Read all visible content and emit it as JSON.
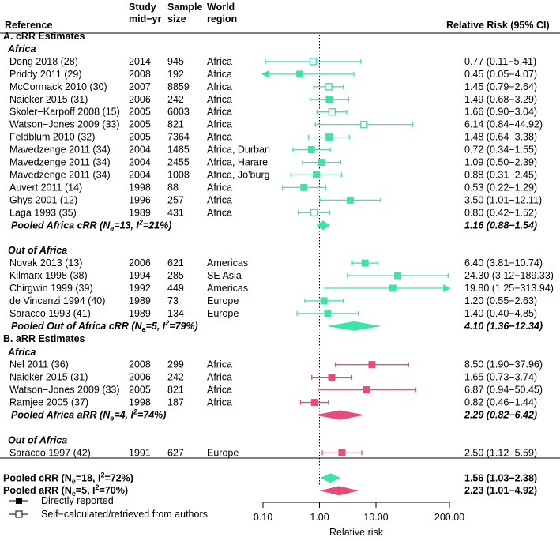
{
  "chart_data": {
    "type": "forest",
    "headers": {
      "reference": "Reference",
      "year_1": "Study",
      "year_2": "mid−yr",
      "size_1": "Sample",
      "size_2": "size",
      "region_1": "World",
      "region_2": "region",
      "rr": "Relative Risk (95% CI)"
    },
    "colors": {
      "crr": "#3ee3a8",
      "arr": "#ea4a76",
      "ref_line": "#000000"
    },
    "rows": [
      {
        "kind": "section",
        "label": "A. cRR Estimates"
      },
      {
        "kind": "subgroup",
        "label": "Africa"
      },
      {
        "kind": "study",
        "group": "crr",
        "ref": "Dong 2018 (28)",
        "year": "2014",
        "n": "945",
        "region": "Africa",
        "rr": 0.77,
        "lo": 0.11,
        "hi": 5.41,
        "marker": "open",
        "label": "0.77 (0.11−5.41)"
      },
      {
        "kind": "study",
        "group": "crr",
        "ref": "Priddy 2011 (29)",
        "year": "2008",
        "n": "192",
        "region": "Africa",
        "rr": 0.45,
        "lo": 0.05,
        "hi": 4.07,
        "marker": "filled",
        "label": "0.45 (0.05−4.07)"
      },
      {
        "kind": "study",
        "group": "crr",
        "ref": "McCormack 2010 (30)",
        "year": "2007",
        "n": "8859",
        "region": "Africa",
        "rr": 1.45,
        "lo": 0.79,
        "hi": 2.64,
        "marker": "open",
        "label": "1.45 (0.79−2.64)"
      },
      {
        "kind": "study",
        "group": "crr",
        "ref": "Naicker 2015 (31)",
        "year": "2006",
        "n": "242",
        "region": "Africa",
        "rr": 1.49,
        "lo": 0.68,
        "hi": 3.29,
        "marker": "filled",
        "label": "1.49 (0.68−3.29)"
      },
      {
        "kind": "study",
        "group": "crr",
        "ref": "Skoler−Karpoff 2008 (15)",
        "year": "2005",
        "n": "6003",
        "region": "Africa",
        "rr": 1.66,
        "lo": 0.9,
        "hi": 3.04,
        "marker": "open",
        "label": "1.66 (0.90−3.04)"
      },
      {
        "kind": "study",
        "group": "crr",
        "ref": "Watson−Jones 2009 (33)",
        "year": "2005",
        "n": "821",
        "region": "Africa",
        "rr": 6.14,
        "lo": 0.84,
        "hi": 44.92,
        "marker": "open",
        "label": "6.14 (0.84−44.92)"
      },
      {
        "kind": "study",
        "group": "crr",
        "ref": "Feldblum 2010 (32)",
        "year": "2005",
        "n": "7364",
        "region": "Africa",
        "rr": 1.48,
        "lo": 0.64,
        "hi": 3.38,
        "marker": "filled",
        "label": "1.48 (0.64−3.38)"
      },
      {
        "kind": "study",
        "group": "crr",
        "ref": "Mavedzenge 2011 (34)",
        "year": "2004",
        "n": "1485",
        "region": "Africa, Durban",
        "rr": 0.72,
        "lo": 0.34,
        "hi": 1.55,
        "marker": "filled",
        "label": "0.72 (0.34−1.55)"
      },
      {
        "kind": "study",
        "group": "crr",
        "ref": "Mavedzenge 2011 (34)",
        "year": "2004",
        "n": "2455",
        "region": "Africa, Harare",
        "rr": 1.09,
        "lo": 0.5,
        "hi": 2.39,
        "marker": "filled",
        "label": "1.09 (0.50−2.39)"
      },
      {
        "kind": "study",
        "group": "crr",
        "ref": "Mavedzenge 2011 (34)",
        "year": "2004",
        "n": "1008",
        "region": "Africa, Jo'burg",
        "rr": 0.88,
        "lo": 0.31,
        "hi": 2.45,
        "marker": "filled",
        "label": "0.88 (0.31−2.45)"
      },
      {
        "kind": "study",
        "group": "crr",
        "ref": "Auvert 2011 (14)",
        "year": "1998",
        "n": "88",
        "region": "Africa",
        "rr": 0.53,
        "lo": 0.22,
        "hi": 1.29,
        "marker": "filled",
        "label": "0.53 (0.22−1.29)"
      },
      {
        "kind": "study",
        "group": "crr",
        "ref": "Ghys 2001 (12)",
        "year": "1996",
        "n": "257",
        "region": "Africa",
        "rr": 3.5,
        "lo": 1.01,
        "hi": 12.11,
        "marker": "filled",
        "label": "3.50 (1.01−12.11)"
      },
      {
        "kind": "study",
        "group": "crr",
        "ref": "Laga 1993 (35)",
        "year": "1989",
        "n": "431",
        "region": "Africa",
        "rr": 0.8,
        "lo": 0.42,
        "hi": 1.52,
        "marker": "open",
        "label": "0.80 (0.42−1.52)"
      },
      {
        "kind": "pooled",
        "group": "crr",
        "pre": "Pooled Africa cRR (N",
        "sub": "e",
        "mid": "=13, I",
        "sup": "2",
        "post": "=21%)",
        "rr": 1.16,
        "lo": 0.88,
        "hi": 1.54,
        "label": "1.16 (0.88−1.54)",
        "italic": true
      },
      {
        "kind": "gap"
      },
      {
        "kind": "subgroup",
        "label": "Out of Africa"
      },
      {
        "kind": "study",
        "group": "crr",
        "ref": "Novak 2013 (13)",
        "year": "2006",
        "n": "621",
        "region": "Americas",
        "rr": 6.4,
        "lo": 3.81,
        "hi": 10.74,
        "marker": "filled",
        "label": "6.40 (3.81−10.74)"
      },
      {
        "kind": "study",
        "group": "crr",
        "ref": "Kilmarx 1998 (38)",
        "year": "1994",
        "n": "285",
        "region": "SE Asia",
        "rr": 24.3,
        "lo": 3.12,
        "hi": 189.33,
        "marker": "filled",
        "label": "24.30 (3.12−189.33)"
      },
      {
        "kind": "study",
        "group": "crr",
        "ref": "Chirgwin 1999 (39)",
        "year": "1992",
        "n": "449",
        "region": "Americas",
        "rr": 19.8,
        "lo": 1.25,
        "hi": 313.94,
        "marker": "filled",
        "label": "19.80 (1.25−313.94)"
      },
      {
        "kind": "study",
        "group": "crr",
        "ref": "de Vincenzi 1994 (40)",
        "year": "1989",
        "n": "73",
        "region": "Europe",
        "rr": 1.2,
        "lo": 0.55,
        "hi": 2.63,
        "marker": "filled",
        "label": "1.20 (0.55−2.63)"
      },
      {
        "kind": "study",
        "group": "crr",
        "ref": "Saracco 1993 (41)",
        "year": "1989",
        "n": "134",
        "region": "Europe",
        "rr": 1.4,
        "lo": 0.4,
        "hi": 4.85,
        "marker": "filled",
        "label": "1.40 (0.40−4.85)"
      },
      {
        "kind": "pooled",
        "group": "crr",
        "pre": "Pooled Out of Africa cRR (N",
        "sub": "e",
        "mid": "=5, I",
        "sup": "2",
        "post": "=79%)",
        "rr": 4.1,
        "lo": 1.36,
        "hi": 12.34,
        "label": "4.10 (1.36−12.34)",
        "italic": true
      },
      {
        "kind": "section",
        "label": "B. aRR Estimates"
      },
      {
        "kind": "subgroup",
        "label": "Africa"
      },
      {
        "kind": "study",
        "group": "arr",
        "ref": "Nel 2011 (36)",
        "year": "2008",
        "n": "299",
        "region": "Africa",
        "rr": 8.5,
        "lo": 1.9,
        "hi": 37.96,
        "marker": "filled",
        "label": "8.50 (1.90−37.96)"
      },
      {
        "kind": "study",
        "group": "arr",
        "ref": "Naicker 2015 (31)",
        "year": "2006",
        "n": "242",
        "region": "Africa",
        "rr": 1.65,
        "lo": 0.73,
        "hi": 3.74,
        "marker": "filled",
        "label": "1.65 (0.73−3.74)"
      },
      {
        "kind": "study",
        "group": "arr",
        "ref": "Watson−Jones 2009 (33)",
        "year": "2005",
        "n": "821",
        "region": "Africa",
        "rr": 6.87,
        "lo": 0.94,
        "hi": 50.45,
        "marker": "filled",
        "label": "6.87 (0.94−50.45)"
      },
      {
        "kind": "study",
        "group": "arr",
        "ref": "Ramjee 2005 (37)",
        "year": "1998",
        "n": "187",
        "region": "Africa",
        "rr": 0.82,
        "lo": 0.46,
        "hi": 1.44,
        "marker": "filled",
        "label": "0.82 (0.46−1.44)"
      },
      {
        "kind": "pooled",
        "group": "arr",
        "pre": "Pooled Africa aRR (N",
        "sub": "e",
        "mid": "=4, I",
        "sup": "2",
        "post": "=74%)",
        "rr": 2.29,
        "lo": 0.82,
        "hi": 6.42,
        "label": "2.29 (0.82−6.42)",
        "italic": true
      },
      {
        "kind": "gap"
      },
      {
        "kind": "subgroup",
        "label": "Out of Africa"
      },
      {
        "kind": "study",
        "group": "arr",
        "ref": "Saracco 1997 (42)",
        "year": "1991",
        "n": "627",
        "region": "Europe",
        "rr": 2.5,
        "lo": 1.12,
        "hi": 5.59,
        "marker": "filled",
        "label": "2.50 (1.12−5.59)"
      },
      {
        "kind": "gap"
      },
      {
        "kind": "pooled",
        "group": "crr",
        "pre": "Pooled cRR (N",
        "sub": "e",
        "mid": "=18, I",
        "sup": "2",
        "post": "=72%)",
        "rr": 1.56,
        "lo": 1.03,
        "hi": 2.38,
        "label": "1.56 (1.03−2.38)",
        "italic": false,
        "overall": true
      },
      {
        "kind": "pooled",
        "group": "arr",
        "pre": "Pooled aRR (N",
        "sub": "e",
        "mid": "=5, I",
        "sup": "2",
        "post": "=70%)",
        "rr": 2.23,
        "lo": 1.01,
        "hi": 4.92,
        "label": "2.23 (1.01−4.92)",
        "italic": false,
        "overall": true
      }
    ],
    "axis": {
      "scale": "log",
      "range": [
        0.1,
        200
      ],
      "ticks": [
        0.1,
        1,
        10,
        200
      ],
      "tick_labels": [
        "0.10",
        "1.00",
        "10.00",
        "200.00"
      ],
      "xlabel": "Relative risk",
      "ref_value": 1
    },
    "legend": [
      {
        "marker": "filled",
        "label": "Directly reported"
      },
      {
        "marker": "open",
        "label": "Self−calculated/retrieved from authors"
      }
    ]
  }
}
